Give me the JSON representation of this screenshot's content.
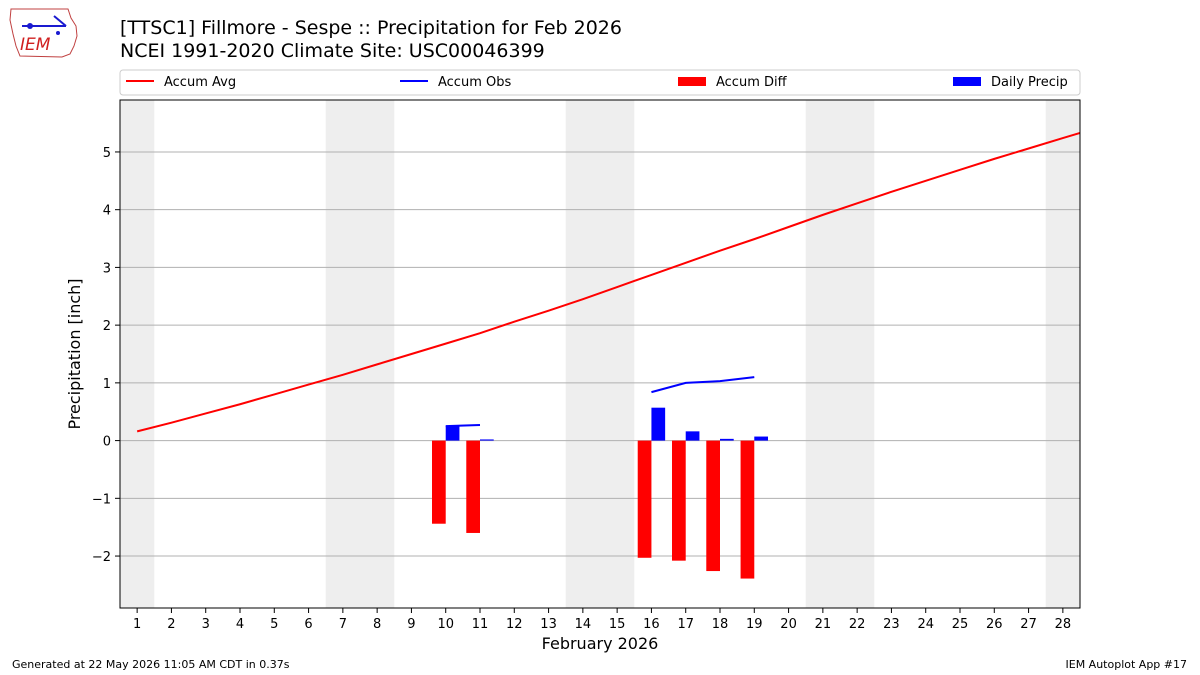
{
  "header": {
    "title_line1": "[TTSC1] Fillmore - Sespe :: Precipitation for Feb 2026",
    "title_line2": "NCEI 1991-2020 Climate Site: USC00046399",
    "logo_text": "IEM"
  },
  "footer": {
    "generated": "Generated at 22 May 2026 11:05 AM CDT in 0.37s",
    "app": "IEM Autoplot App #17"
  },
  "chart_data": {
    "type": "bar",
    "xlabel": "February 2026",
    "ylabel": "Precipitation [inch]",
    "xlim": [
      0.5,
      28.5
    ],
    "ylim": [
      -2.9,
      5.9
    ],
    "yticks": [
      -2,
      -1,
      0,
      1,
      2,
      3,
      4,
      5
    ],
    "xticks": [
      1,
      2,
      3,
      4,
      5,
      6,
      7,
      8,
      9,
      10,
      11,
      12,
      13,
      14,
      15,
      16,
      17,
      18,
      19,
      20,
      21,
      22,
      23,
      24,
      25,
      26,
      27,
      28
    ],
    "grid": "horizontal",
    "legend_position": "top",
    "weekend_shading_days": [
      1,
      7,
      8,
      14,
      15,
      21,
      22,
      28
    ],
    "colors": {
      "accum_avg": "#ff0000",
      "accum_obs": "#0000ff",
      "accum_diff": "#ff0000",
      "daily_precip": "#0000ff",
      "shading": "#eeeeee"
    },
    "legend": [
      {
        "key": "accum_avg",
        "label": "Accum Avg",
        "kind": "line"
      },
      {
        "key": "accum_obs",
        "label": "Accum Obs",
        "kind": "line"
      },
      {
        "key": "accum_diff",
        "label": "Accum Diff",
        "kind": "bar"
      },
      {
        "key": "daily_precip",
        "label": "Daily Precip",
        "kind": "bar"
      }
    ],
    "series": [
      {
        "name": "Accum Avg",
        "key": "accum_avg",
        "x": [
          1,
          2,
          3,
          4,
          5,
          6,
          7,
          8,
          9,
          10,
          11,
          12,
          13,
          14,
          15,
          16,
          17,
          18,
          19,
          20,
          21,
          22,
          23,
          24,
          25,
          26,
          27,
          28,
          28.5
        ],
        "values": [
          0.16,
          0.31,
          0.47,
          0.63,
          0.8,
          0.97,
          1.14,
          1.32,
          1.5,
          1.68,
          1.86,
          2.06,
          2.25,
          2.45,
          2.66,
          2.87,
          3.08,
          3.29,
          3.49,
          3.7,
          3.91,
          4.11,
          4.31,
          4.5,
          4.69,
          4.88,
          5.06,
          5.24,
          5.33
        ]
      },
      {
        "name": "Accum Obs",
        "key": "accum_obs",
        "segments": [
          {
            "x": [
              10,
              11
            ],
            "values": [
              0.25,
              0.27
            ]
          },
          {
            "x": [
              16,
              17,
              18,
              19
            ],
            "values": [
              0.84,
              1.0,
              1.03,
              1.1
            ]
          }
        ]
      },
      {
        "name": "Accum Diff",
        "key": "accum_diff",
        "x": [
          10,
          11,
          16,
          17,
          18,
          19
        ],
        "values": [
          -1.44,
          -1.6,
          -2.03,
          -2.08,
          -2.26,
          -2.39
        ]
      },
      {
        "name": "Daily Precip",
        "key": "daily_precip",
        "x": [
          10,
          11,
          16,
          17,
          18,
          19
        ],
        "values": [
          0.25,
          0.02,
          0.57,
          0.16,
          0.03,
          0.07
        ]
      }
    ]
  }
}
